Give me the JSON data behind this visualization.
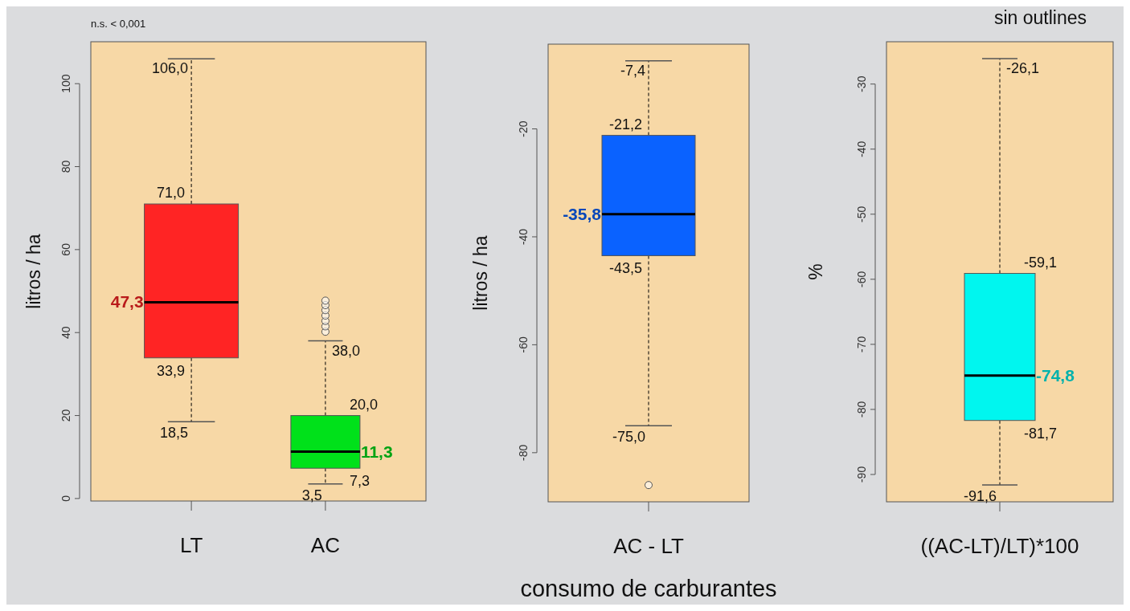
{
  "chart_data": [
    {
      "type": "box",
      "ylabel": "litros / ha",
      "categories": [
        "LT",
        "AC"
      ],
      "colors": [
        "#ff2424",
        "#00e11a"
      ],
      "ylim": [
        -0.6,
        110.1
      ],
      "yticks": [
        0,
        20,
        40,
        60,
        80,
        100
      ],
      "annotations": [
        "n.s. < 0,001",
        {
          "text": "106,0",
          "x": "LT",
          "y": 106.0
        },
        {
          "text": "71,0",
          "x": "LT",
          "y": 71.0
        },
        {
          "text": "47,3",
          "x": "LT",
          "y": 47.3
        },
        {
          "text": "33,9",
          "x": "LT",
          "y": 33.9
        },
        {
          "text": "18,5",
          "x": "LT",
          "y": 18.5
        },
        {
          "text": "38,0",
          "x": "AC",
          "y": 38.0
        },
        {
          "text": "20,0",
          "x": "AC",
          "y": 20.0
        },
        {
          "text": "11,3",
          "x": "AC",
          "y": 11.3
        },
        {
          "text": "7,3",
          "x": "AC",
          "y": 7.3
        },
        {
          "text": "3,5",
          "x": "AC",
          "y": 3.5
        }
      ],
      "boxes": [
        {
          "low": 18.5,
          "q1": 33.9,
          "median": 47.3,
          "q3": 71.0,
          "high": 106.0
        },
        {
          "low": 3.5,
          "q1": 7.3,
          "median": 11.3,
          "q3": 20.0,
          "high": 38.0,
          "outliers": [
            40.2,
            41.5,
            42.8,
            44.1,
            45.4,
            46.6,
            47.7
          ]
        }
      ]
    },
    {
      "type": "box",
      "ylabel": "litros / ha",
      "xlabel": "consumo de carburantes",
      "categories": [
        "AC - LT"
      ],
      "colors": [
        "#0a62ff"
      ],
      "ylim": [
        -89.1,
        -4.3
      ],
      "yticks": [
        -20,
        -40,
        -60,
        -80
      ],
      "annotations": [
        {
          "text": "-7,4",
          "x": "AC - LT",
          "y": -7.4
        },
        {
          "text": "-21,2",
          "x": "AC - LT",
          "y": -21.2
        },
        {
          "text": "-35,8",
          "x": "AC - LT",
          "y": -35.8
        },
        {
          "text": "-43,5",
          "x": "AC - LT",
          "y": -43.5
        },
        {
          "text": "-75,0",
          "x": "AC - LT",
          "y": -75.0
        }
      ],
      "boxes": [
        {
          "low": -75.0,
          "q1": -43.5,
          "median": -35.8,
          "q3": -21.2,
          "high": -7.4,
          "outliers": [
            -86.0
          ]
        }
      ]
    },
    {
      "type": "box",
      "ylabel": "%",
      "categories": [
        "((AC-LT)/LT)*100"
      ],
      "colors": [
        "#00f6ef"
      ],
      "ylim": [
        -94.2,
        -23.5
      ],
      "yticks": [
        -30,
        -40,
        -50,
        -60,
        -70,
        -80,
        -90
      ],
      "annotations": [
        "sin outlines",
        {
          "text": "-26,1",
          "x": "((AC-LT)/LT)*100",
          "y": -26.1
        },
        {
          "text": "-59,1",
          "x": "((AC-LT)/LT)*100",
          "y": -59.1
        },
        {
          "text": "-74,8",
          "x": "((AC-LT)/LT)*100",
          "y": -74.8
        },
        {
          "text": "-81,7",
          "x": "((AC-LT)/LT)*100",
          "y": -81.7
        },
        {
          "text": "-91,6",
          "x": "((AC-LT)/LT)*100",
          "y": -91.6
        }
      ],
      "boxes": [
        {
          "low": -91.6,
          "q1": -81.7,
          "median": -74.8,
          "q3": -59.1,
          "high": -26.1
        }
      ]
    }
  ]
}
